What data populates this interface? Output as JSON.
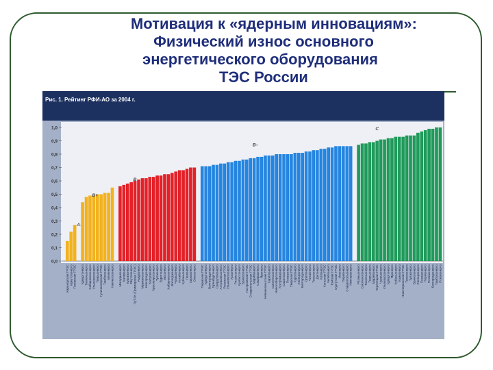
{
  "slide": {
    "title_lines": [
      "Мотивация к «ядерным инновациям»:",
      "Физический износ основного",
      "энергетического оборудования",
      "ТЭС России"
    ]
  },
  "colors": {
    "A-": "#f2b21e",
    "B+": "#f2b21e",
    "B": "#e32128",
    "B-": "#2585e0",
    "C": "#1f9a5a",
    "plot_bg": "#eef0f5",
    "label_bg": "#a3b0c7",
    "header_bg": "#1c3160"
  },
  "chart_data": {
    "type": "bar",
    "title": "Рис. 1. Рейтинг РФИ-АО за 2004 г.",
    "xlabel": "",
    "ylabel": "",
    "ylim": [
      0,
      1.0
    ],
    "yticks": [
      "0,0",
      "0,1",
      "0,2",
      "0,3",
      "0,4",
      "0,5",
      "0,6",
      "0,7",
      "0,8",
      "0,9",
      "1,0"
    ],
    "grid": false,
    "groups": [
      {
        "name": "A–",
        "color_key": "A-",
        "categories": [
          "Харанорская ГРЭС",
          "Иркутскэнерго",
          "Псковская ГРЭС"
        ],
        "values": [
          0.15,
          0.22,
          0.27
        ]
      },
      {
        "name": "B+",
        "color_key": "B+",
        "categories": [
          "Удмуртэнерго",
          "Тюменьэнерго",
          "Хабаровскэнерго",
          "Ульяновскэнерго",
          "Тверьэнерго",
          "Гусиноозерская ГРЭС",
          "Тамбовэнерго",
          "Мезенерго",
          "Камчатскэнерго"
        ],
        "values": [
          0.44,
          0.48,
          0.49,
          0.49,
          0.5,
          0.5,
          0.51,
          0.51,
          0.55
        ]
      },
      {
        "name": "B",
        "color_key": "B",
        "categories": [
          "Магаданэнерго",
          "Калмэнерго",
          "Курганэнерго",
          "Якутскэнерго",
          "ЛуТЭК (Приморская ГРЭС)",
          "Амурэнерго",
          "Мурманскэнерго",
          "Новгородэнерго",
          "Калугаэнерго",
          "Красноярскэнерго",
          "Тулаэнерго",
          "Бурятэнерго",
          "Мосэнерго",
          "Хабаровскэнерго",
          "Вологдаэнерго",
          "Чувашэнерго",
          "Алтайэнерго",
          "Кубаньэнерго",
          "Ленэнерго",
          "Кировэнерго",
          "Омскэнерго"
        ],
        "values": [
          0.56,
          0.57,
          0.58,
          0.59,
          0.6,
          0.61,
          0.62,
          0.62,
          0.63,
          0.63,
          0.64,
          0.64,
          0.65,
          0.65,
          0.66,
          0.67,
          0.68,
          0.68,
          0.69,
          0.7,
          0.7
        ]
      },
      {
        "name": "B–",
        "color_key": "B-",
        "categories": [
          "Пермская ГРЭС",
          "Удмуртэнерго",
          "Волгоградэнерго",
          "Оренбургэнерго",
          "Свердловэнерго",
          "Астраханьэнерго",
          "Рязанская ГРЭС",
          "Ульяновскэнерго",
          "Архэнерго",
          "Рязаньэнерго",
          "Кузбассэнерго",
          "Брянскэнерго",
          "Костромская ГРЭС",
          "Ставропольская ГРЭС",
          "Марийэнерго",
          "Самараэнерго",
          "Ярэнерго",
          "Невинномысская ГРЭС",
          "Карелэнерго",
          "Смоленскэнерго",
          "Новосибирскэнерго",
          "Костромаэнерго",
          "Саратовэнерго",
          "Пензаэнерго",
          "Тверская ГРЭС",
          "Курскэнерго",
          "Липецкэнерго",
          "Белгородэнерго",
          "Орелэнерго",
          "Читаэнерго",
          "Томскэнерго",
          "Дагэнерго",
          "Колэнерго",
          "Кольская ГРЭС",
          "Челябэнерго",
          "Томская ГРЭС",
          "Сургутская ГРЭС",
          "Ивэнерго",
          "Пермэнерго",
          "Ставропольэнерго",
          "Нижновэнерго"
        ],
        "values": [
          0.71,
          0.71,
          0.71,
          0.72,
          0.72,
          0.73,
          0.73,
          0.74,
          0.74,
          0.75,
          0.75,
          0.76,
          0.76,
          0.77,
          0.77,
          0.78,
          0.78,
          0.79,
          0.79,
          0.79,
          0.8,
          0.8,
          0.8,
          0.8,
          0.8,
          0.81,
          0.81,
          0.81,
          0.82,
          0.82,
          0.83,
          0.83,
          0.84,
          0.84,
          0.85,
          0.85,
          0.86,
          0.86,
          0.86,
          0.86,
          0.86
        ]
      },
      {
        "name": "C",
        "color_key": "C",
        "categories": [
          "Рязаньэнерго",
          "Смоленскэнерго",
          "Тюменьэнерго",
          "Тверьэнерго",
          "Марийэнерго",
          "Черепецкая ГРЭС",
          "Чувашэнерго",
          "Ульяновскэнерго",
          "Удмуртэнерго",
          "Ярэнерго",
          "Кубаньэнерго",
          "Комиэнерго",
          "Новочеркасская ГРЭС",
          "Томскэнерго",
          "Тулаэнерго",
          "Брянскэнерго",
          "Липецкэнерго",
          "Пензаэнерго",
          "Пермэнерго",
          "Пензаэнерго",
          "Белгородэнерго",
          "Тамбовэнерго",
          "Псковэнерго"
        ],
        "values": [
          0.87,
          0.88,
          0.88,
          0.89,
          0.89,
          0.9,
          0.91,
          0.91,
          0.92,
          0.92,
          0.93,
          0.93,
          0.93,
          0.94,
          0.94,
          0.94,
          0.96,
          0.97,
          0.98,
          0.99,
          0.99,
          1.0,
          1.0
        ]
      }
    ]
  }
}
